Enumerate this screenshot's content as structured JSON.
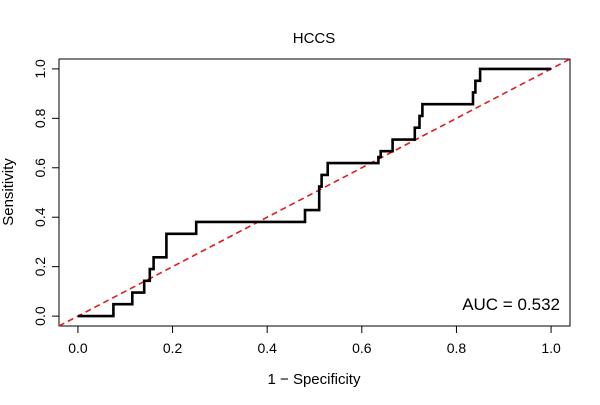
{
  "chart_data": {
    "type": "line",
    "title": "HCCS",
    "xlabel": "1 − Specificity",
    "ylabel": "Sensitivity",
    "xlim": [
      -0.04,
      1.04
    ],
    "ylim": [
      -0.04,
      1.04
    ],
    "x_ticks": [
      "0.0",
      "0.2",
      "0.4",
      "0.6",
      "0.8",
      "1.0"
    ],
    "y_ticks": [
      "0.0",
      "0.2",
      "0.4",
      "0.6",
      "0.8",
      "1.0"
    ],
    "grid": false,
    "annotation": "AUC = 0.532",
    "series": [
      {
        "name": "ROC curve",
        "color": "#000000",
        "x": [
          0.0,
          0.075,
          0.075,
          0.115,
          0.115,
          0.14,
          0.14,
          0.152,
          0.152,
          0.16,
          0.16,
          0.187,
          0.187,
          0.25,
          0.25,
          0.48,
          0.48,
          0.51,
          0.51,
          0.515,
          0.515,
          0.528,
          0.528,
          0.635,
          0.635,
          0.64,
          0.64,
          0.665,
          0.665,
          0.712,
          0.712,
          0.722,
          0.722,
          0.728,
          0.728,
          0.735,
          0.735,
          0.835,
          0.835,
          0.84,
          0.84,
          0.85,
          0.85,
          1.0
        ],
        "y": [
          0.0,
          0.0,
          0.048,
          0.048,
          0.095,
          0.095,
          0.143,
          0.143,
          0.19,
          0.19,
          0.238,
          0.238,
          0.333,
          0.333,
          0.381,
          0.381,
          0.429,
          0.429,
          0.524,
          0.524,
          0.571,
          0.571,
          0.619,
          0.619,
          0.643,
          0.643,
          0.667,
          0.667,
          0.714,
          0.714,
          0.762,
          0.762,
          0.81,
          0.81,
          0.857,
          0.857,
          0.857,
          0.857,
          0.905,
          0.905,
          0.952,
          0.952,
          1.0,
          1.0
        ]
      },
      {
        "name": "reference diagonal",
        "color": "#e31a1c",
        "dashed": true,
        "x": [
          -0.04,
          1.04
        ],
        "y": [
          -0.04,
          1.04
        ]
      }
    ]
  }
}
